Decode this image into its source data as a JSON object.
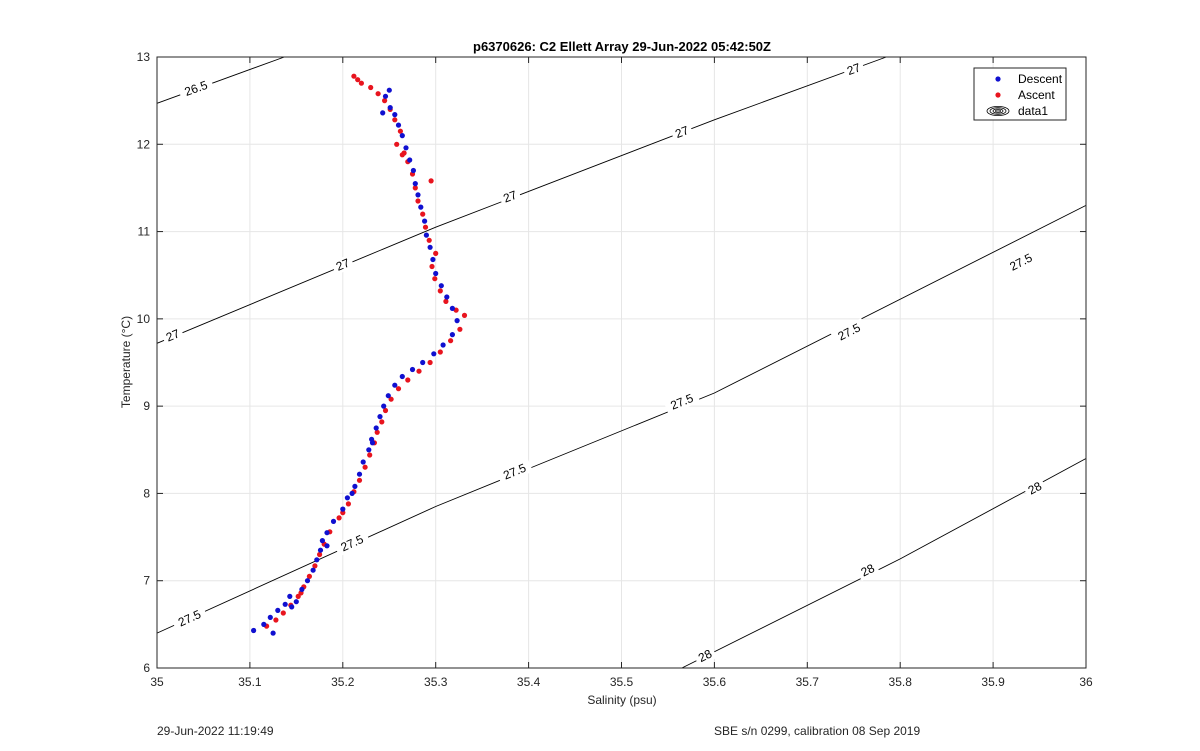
{
  "chart_data": {
    "type": "scatter",
    "title": "p6370626: C2 Ellett Array 29-Jun-2022 05:42:50Z",
    "xlabel": "Salinity (psu)",
    "ylabel": "Temperature (°C)",
    "xlim": [
      35,
      36
    ],
    "ylim": [
      6,
      13
    ],
    "xticks": [
      35,
      35.1,
      35.2,
      35.3,
      35.4,
      35.5,
      35.6,
      35.7,
      35.8,
      35.9,
      36
    ],
    "xtick_labels": [
      "35",
      "35.1",
      "35.2",
      "35.3",
      "35.4",
      "35.5",
      "35.6",
      "35.7",
      "35.8",
      "35.9",
      "36"
    ],
    "yticks": [
      6,
      7,
      8,
      9,
      10,
      11,
      12,
      13
    ],
    "ytick_labels": [
      "6",
      "7",
      "8",
      "9",
      "10",
      "11",
      "12",
      "13"
    ],
    "grid": true,
    "legend_position": "top-right",
    "legend": [
      "Descent",
      "Ascent",
      "data1"
    ],
    "series": [
      {
        "name": "Descent",
        "color": "#1010d0",
        "marker": "dot",
        "points": [
          [
            35.104,
            6.43
          ],
          [
            35.115,
            6.5
          ],
          [
            35.125,
            6.4
          ],
          [
            35.122,
            6.58
          ],
          [
            35.13,
            6.66
          ],
          [
            35.138,
            6.73
          ],
          [
            35.143,
            6.82
          ],
          [
            35.15,
            6.76
          ],
          [
            35.156,
            6.9
          ],
          [
            35.162,
            7.0
          ],
          [
            35.168,
            7.12
          ],
          [
            35.172,
            7.24
          ],
          [
            35.176,
            7.35
          ],
          [
            35.178,
            7.46
          ],
          [
            35.183,
            7.55
          ],
          [
            35.19,
            7.68
          ],
          [
            35.2,
            7.82
          ],
          [
            35.205,
            7.95
          ],
          [
            35.213,
            8.08
          ],
          [
            35.218,
            8.22
          ],
          [
            35.222,
            8.36
          ],
          [
            35.228,
            8.5
          ],
          [
            35.231,
            8.62
          ],
          [
            35.236,
            8.75
          ],
          [
            35.24,
            8.88
          ],
          [
            35.244,
            9.0
          ],
          [
            35.249,
            9.12
          ],
          [
            35.256,
            9.24
          ],
          [
            35.264,
            9.34
          ],
          [
            35.275,
            9.42
          ],
          [
            35.286,
            9.5
          ],
          [
            35.298,
            9.6
          ],
          [
            35.308,
            9.7
          ],
          [
            35.318,
            9.82
          ],
          [
            35.323,
            9.98
          ],
          [
            35.318,
            10.12
          ],
          [
            35.312,
            10.25
          ],
          [
            35.306,
            10.38
          ],
          [
            35.3,
            10.52
          ],
          [
            35.297,
            10.68
          ],
          [
            35.294,
            10.82
          ],
          [
            35.29,
            10.96
          ],
          [
            35.288,
            11.12
          ],
          [
            35.284,
            11.28
          ],
          [
            35.281,
            11.42
          ],
          [
            35.278,
            11.55
          ],
          [
            35.276,
            11.7
          ],
          [
            35.272,
            11.82
          ],
          [
            35.268,
            11.96
          ],
          [
            35.264,
            12.1
          ],
          [
            35.26,
            12.22
          ],
          [
            35.256,
            12.34
          ],
          [
            35.251,
            12.42
          ],
          [
            35.246,
            12.55
          ],
          [
            35.25,
            12.62
          ],
          [
            35.243,
            12.36
          ],
          [
            35.232,
            8.58
          ],
          [
            35.21,
            8.0
          ],
          [
            35.183,
            7.4
          ],
          [
            35.145,
            6.7
          ]
        ]
      },
      {
        "name": "Ascent",
        "color": "#e8141e",
        "marker": "dot",
        "points": [
          [
            35.118,
            6.48
          ],
          [
            35.128,
            6.55
          ],
          [
            35.136,
            6.63
          ],
          [
            35.144,
            6.72
          ],
          [
            35.152,
            6.82
          ],
          [
            35.158,
            6.93
          ],
          [
            35.164,
            7.05
          ],
          [
            35.17,
            7.17
          ],
          [
            35.175,
            7.3
          ],
          [
            35.18,
            7.42
          ],
          [
            35.186,
            7.56
          ],
          [
            35.196,
            7.72
          ],
          [
            35.206,
            7.88
          ],
          [
            35.212,
            8.02
          ],
          [
            35.218,
            8.15
          ],
          [
            35.224,
            8.3
          ],
          [
            35.229,
            8.44
          ],
          [
            35.234,
            8.58
          ],
          [
            35.237,
            8.7
          ],
          [
            35.242,
            8.82
          ],
          [
            35.246,
            8.95
          ],
          [
            35.252,
            9.08
          ],
          [
            35.26,
            9.2
          ],
          [
            35.27,
            9.3
          ],
          [
            35.282,
            9.4
          ],
          [
            35.294,
            9.5
          ],
          [
            35.305,
            9.62
          ],
          [
            35.316,
            9.75
          ],
          [
            35.326,
            9.88
          ],
          [
            35.331,
            10.04
          ],
          [
            35.322,
            10.1
          ],
          [
            35.311,
            10.2
          ],
          [
            35.305,
            10.32
          ],
          [
            35.299,
            10.46
          ],
          [
            35.296,
            10.6
          ],
          [
            35.3,
            10.75
          ],
          [
            35.293,
            10.9
          ],
          [
            35.289,
            11.05
          ],
          [
            35.286,
            11.2
          ],
          [
            35.295,
            11.58
          ],
          [
            35.281,
            11.35
          ],
          [
            35.278,
            11.5
          ],
          [
            35.275,
            11.66
          ],
          [
            35.27,
            11.8
          ],
          [
            35.264,
            11.88
          ],
          [
            35.258,
            12.0
          ],
          [
            35.262,
            12.15
          ],
          [
            35.256,
            12.28
          ],
          [
            35.251,
            12.4
          ],
          [
            35.245,
            12.5
          ],
          [
            35.238,
            12.58
          ],
          [
            35.23,
            12.65
          ],
          [
            35.22,
            12.7
          ],
          [
            35.212,
            12.78
          ],
          [
            35.216,
            12.74
          ],
          [
            35.266,
            11.9
          ],
          [
            35.2,
            7.78
          ],
          [
            35.155,
            6.86
          ]
        ]
      }
    ],
    "density_contours": [
      {
        "level": "26.5",
        "points": [
          [
            35.0,
            12.47
          ],
          [
            35.137,
            13.0
          ]
        ]
      },
      {
        "level": "27",
        "points": [
          [
            35.0,
            9.72
          ],
          [
            35.3,
            11.05
          ],
          [
            35.6,
            12.28
          ],
          [
            35.785,
            13.0
          ]
        ]
      },
      {
        "level": "27.5",
        "points": [
          [
            35.0,
            6.4
          ],
          [
            35.3,
            7.85
          ],
          [
            35.6,
            9.15
          ],
          [
            36.0,
            11.3
          ]
        ]
      },
      {
        "level": "28",
        "points": [
          [
            35.565,
            6.0
          ],
          [
            35.8,
            7.25
          ],
          [
            36.0,
            8.4
          ]
        ]
      }
    ],
    "contour_labels": [
      {
        "text": "26.5",
        "x": 35.042,
        "y": 12.64
      },
      {
        "text": "27",
        "x": 35.017,
        "y": 9.81
      },
      {
        "text": "27",
        "x": 35.2,
        "y": 10.62
      },
      {
        "text": "27",
        "x": 35.38,
        "y": 11.4
      },
      {
        "text": "27",
        "x": 35.565,
        "y": 12.14
      },
      {
        "text": "27",
        "x": 35.75,
        "y": 12.86
      },
      {
        "text": "27.5",
        "x": 35.035,
        "y": 6.57
      },
      {
        "text": "27.5",
        "x": 35.21,
        "y": 7.43
      },
      {
        "text": "27.5",
        "x": 35.385,
        "y": 8.25
      },
      {
        "text": "27.5",
        "x": 35.565,
        "y": 9.05
      },
      {
        "text": "27.5",
        "x": 35.745,
        "y": 9.85
      },
      {
        "text": "27.5",
        "x": 35.93,
        "y": 10.65
      },
      {
        "text": "28",
        "x": 35.59,
        "y": 6.14
      },
      {
        "text": "28",
        "x": 35.765,
        "y": 7.12
      },
      {
        "text": "28",
        "x": 35.945,
        "y": 8.06
      }
    ]
  },
  "footer": {
    "left": "29-Jun-2022 11:19:49",
    "right": "SBE s/n 0299, calibration 08 Sep 2019"
  }
}
